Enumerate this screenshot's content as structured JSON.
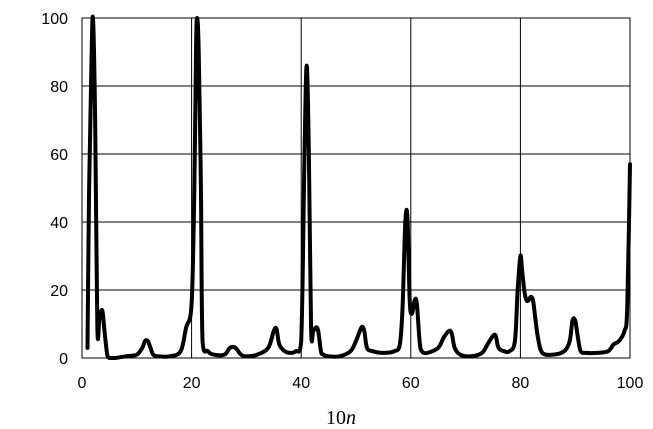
{
  "chart_data": {
    "type": "line",
    "title": "",
    "xlabel_prefix": "10",
    "xlabel_var": "n",
    "ylabel": "",
    "xlim": [
      0,
      100
    ],
    "ylim": [
      0,
      100
    ],
    "xticks": [
      0,
      20,
      40,
      60,
      80,
      100
    ],
    "yticks": [
      0,
      20,
      40,
      60,
      80,
      100
    ],
    "grid": true,
    "colors": {
      "line": "#000000",
      "grid": "#000000",
      "background": "#ffffff"
    },
    "series": [
      {
        "x": [
          1,
          1.3,
          1.7,
          2,
          2.4,
          2.8,
          3.2,
          3.7,
          4.1,
          4.6,
          5,
          6,
          8,
          10,
          11,
          11.5,
          12,
          12.5,
          13,
          14,
          16,
          18,
          19,
          20,
          20.5,
          20.8,
          21,
          21.3,
          21.7,
          22,
          23,
          24,
          26,
          27,
          28,
          29,
          30,
          32,
          34,
          35,
          35.5,
          36,
          37,
          38,
          39,
          40,
          40.6,
          41,
          41.4,
          41.8,
          42.2,
          42.7,
          43.1,
          43.6,
          44,
          45,
          47,
          49,
          50,
          51,
          51.5,
          52,
          53,
          55,
          57,
          58,
          58.5,
          59,
          59.4,
          59.8,
          60.2,
          60.7,
          61.1,
          61.6,
          62,
          63,
          65,
          66,
          67,
          67.5,
          68,
          69,
          71,
          73,
          74,
          75,
          75.5,
          76,
          77,
          78,
          79,
          79.5,
          80,
          80.3,
          80.7,
          81.1,
          81.5,
          81.9,
          82.3,
          82.7,
          83.2,
          84,
          86,
          88,
          89,
          89.5,
          90,
          90.5,
          91,
          92,
          94,
          96,
          97,
          98,
          99,
          99.5,
          100
        ],
        "y": [
          3,
          50,
          85,
          100,
          70,
          9,
          12,
          14,
          8,
          1,
          0,
          0,
          0.5,
          1,
          3,
          5,
          5,
          3,
          1,
          0.5,
          0.5,
          2,
          9,
          16,
          50,
          90,
          100,
          90,
          50,
          5,
          2,
          1,
          1,
          3,
          3,
          1,
          0.5,
          1,
          3,
          8,
          8.5,
          4,
          2,
          1.5,
          2,
          5,
          60,
          86,
          60,
          9,
          8,
          9,
          8,
          2,
          1,
          0.5,
          0.5,
          2,
          5,
          9,
          8,
          3,
          2,
          1.5,
          2,
          4,
          15,
          40,
          41,
          17,
          13,
          17,
          16,
          5,
          2,
          1.5,
          3,
          6,
          8,
          7,
          3,
          1,
          0.5,
          1.5,
          4,
          6.5,
          6.5,
          3,
          2,
          2,
          5,
          20,
          30,
          26,
          20,
          17,
          17,
          18,
          17,
          12,
          6,
          1.5,
          1,
          2,
          5,
          11,
          11,
          6,
          2,
          1.5,
          1.5,
          2,
          4,
          5,
          8,
          15,
          57
        ]
      }
    ]
  }
}
